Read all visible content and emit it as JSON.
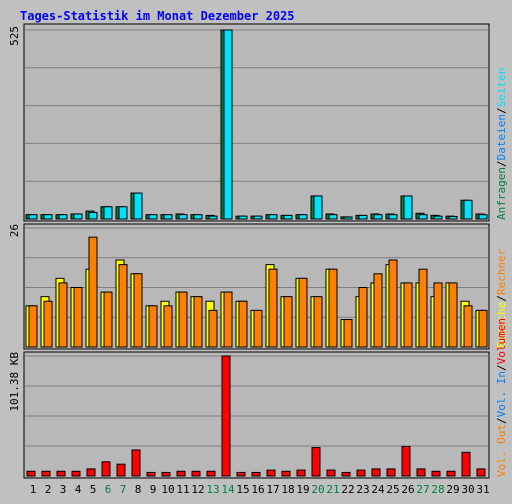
{
  "title": "Tages-Statistik im Monat Dezember 2025",
  "colors": {
    "background": "#C0C0C0",
    "panel": "#B8B8B8",
    "title": "#0000FF",
    "hits": "#008040",
    "files": "#0080FF",
    "pages": "#00E0FF",
    "visits": "#FFFF00",
    "sites": "#FF8000",
    "kbytes": "#FF0000",
    "weekend_day": "#008040",
    "weekday": "#000000"
  },
  "chart_data": [
    {
      "type": "bar",
      "name": "hits-pages-panel",
      "ymax_label": "525",
      "ylim": [
        0,
        525
      ],
      "grid": true,
      "series": [
        {
          "name": "Anfragen",
          "values": [
            12,
            12,
            12,
            14,
            22,
            34,
            34,
            72,
            12,
            12,
            14,
            12,
            10,
            525,
            8,
            8,
            12,
            10,
            12,
            64,
            14,
            6,
            10,
            14,
            14,
            64,
            16,
            10,
            8,
            52,
            14
          ]
        },
        {
          "name": "Seiten",
          "values": [
            12,
            12,
            12,
            14,
            18,
            34,
            34,
            72,
            12,
            12,
            12,
            12,
            8,
            525,
            8,
            8,
            12,
            10,
            12,
            64,
            12,
            5,
            10,
            12,
            12,
            64,
            12,
            8,
            7,
            52,
            12
          ]
        }
      ]
    },
    {
      "type": "bar",
      "name": "visits-sites-panel",
      "ymax_label": "26",
      "ylim": [
        0,
        26
      ],
      "grid": true,
      "series": [
        {
          "name": "Besuche",
          "values": [
            9,
            11,
            15,
            13,
            17,
            12,
            19,
            16,
            9,
            10,
            12,
            11,
            10,
            12,
            10,
            8,
            18,
            11,
            15,
            11,
            17,
            6,
            11,
            14,
            18,
            14,
            14,
            11,
            14,
            10,
            8
          ]
        },
        {
          "name": "Rechner",
          "values": [
            9,
            10,
            14,
            13,
            24,
            12,
            18,
            16,
            9,
            9,
            12,
            11,
            8,
            12,
            10,
            8,
            17,
            11,
            15,
            11,
            17,
            6,
            13,
            16,
            19,
            14,
            17,
            14,
            14,
            9,
            8
          ]
        }
      ]
    },
    {
      "type": "bar",
      "name": "kbytes-panel",
      "ymax_label": "101.38 KB",
      "ylim": [
        0,
        101.38
      ],
      "grid": true,
      "series": [
        {
          "name": "Volumen",
          "values": [
            4,
            4,
            4,
            4,
            6,
            12,
            10,
            22,
            3,
            3,
            4,
            4,
            4,
            101.38,
            3,
            3,
            5,
            4,
            5,
            24,
            5,
            3,
            5,
            6,
            6,
            25,
            6,
            4,
            4,
            20,
            6
          ]
        }
      ]
    }
  ],
  "x_categories": [
    "1",
    "2",
    "3",
    "4",
    "5",
    "6",
    "7",
    "8",
    "9",
    "10",
    "11",
    "12",
    "13",
    "14",
    "15",
    "16",
    "17",
    "18",
    "19",
    "20",
    "21",
    "22",
    "23",
    "24",
    "25",
    "26",
    "27",
    "28",
    "29",
    "30",
    "31"
  ],
  "weekend_days": [
    6,
    7,
    13,
    14,
    20,
    21,
    27,
    28
  ],
  "right_legend": {
    "panel1": [
      {
        "text": "Anfragen",
        "color_key": "hits"
      },
      {
        "text": "Dateien",
        "color_key": "files"
      },
      {
        "text": "Seiten",
        "color_key": "pages"
      }
    ],
    "panel2": [
      {
        "text": "Besuche",
        "color_key": "visits"
      },
      {
        "text": "Rechner",
        "color_key": "sites"
      }
    ],
    "panel3": [
      {
        "text": "Vol. Out",
        "color_key": "sites"
      },
      {
        "text": "Vol. In",
        "color_key": "files"
      },
      {
        "text": "Volumen",
        "color_key": "kbytes"
      }
    ],
    "separator": "/"
  }
}
